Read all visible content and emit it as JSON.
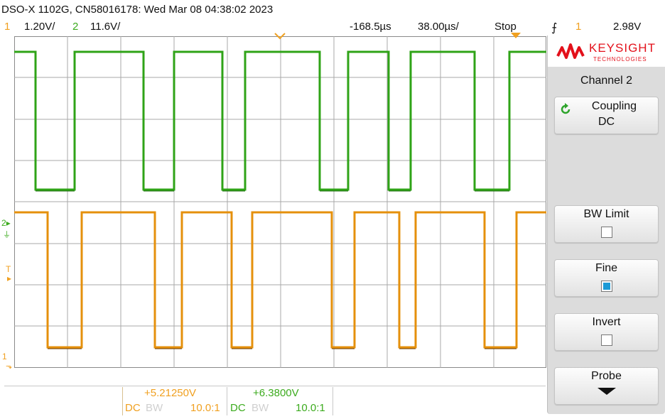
{
  "header": {
    "title": "DSO-X 1102G, CN58016178: Wed Mar 08 04:38:02 2023",
    "ch1_num": "1",
    "ch1_scale": "1.20V/",
    "ch2_num": "2",
    "ch2_scale": "11.6V/",
    "time_offset": "-168.5µs",
    "time_scale": "38.00µs/",
    "run_state": "Stop",
    "trig_channel": "1",
    "trig_level": "2.98V"
  },
  "brand": {
    "name": "KEYSIGHT",
    "sub": "TECHNOLOGIES"
  },
  "softkeys": {
    "menu_title": "Channel 2",
    "coupling_label": "Coupling",
    "coupling_value": "DC",
    "bwlimit_label": "BW Limit",
    "fine_label": "Fine",
    "invert_label": "Invert",
    "probe_label": "Probe"
  },
  "markers": {
    "ch2": "2",
    "trig": "T",
    "ch1": "1"
  },
  "bottom": {
    "ch1_offset": "+5.21250V",
    "ch1_coupling": "DC",
    "ch1_bw": "BW",
    "ch1_probe": "10.0:1",
    "ch2_offset": "+6.3800V",
    "ch2_coupling": "DC",
    "ch2_bw": "BW",
    "ch2_probe": "10.0:1"
  },
  "state": {
    "bw_limit": false,
    "fine": true,
    "invert": false
  },
  "colors": {
    "ch1": "#e8920f",
    "ch2": "#33a91a",
    "grid": "#9a9a9a"
  }
}
